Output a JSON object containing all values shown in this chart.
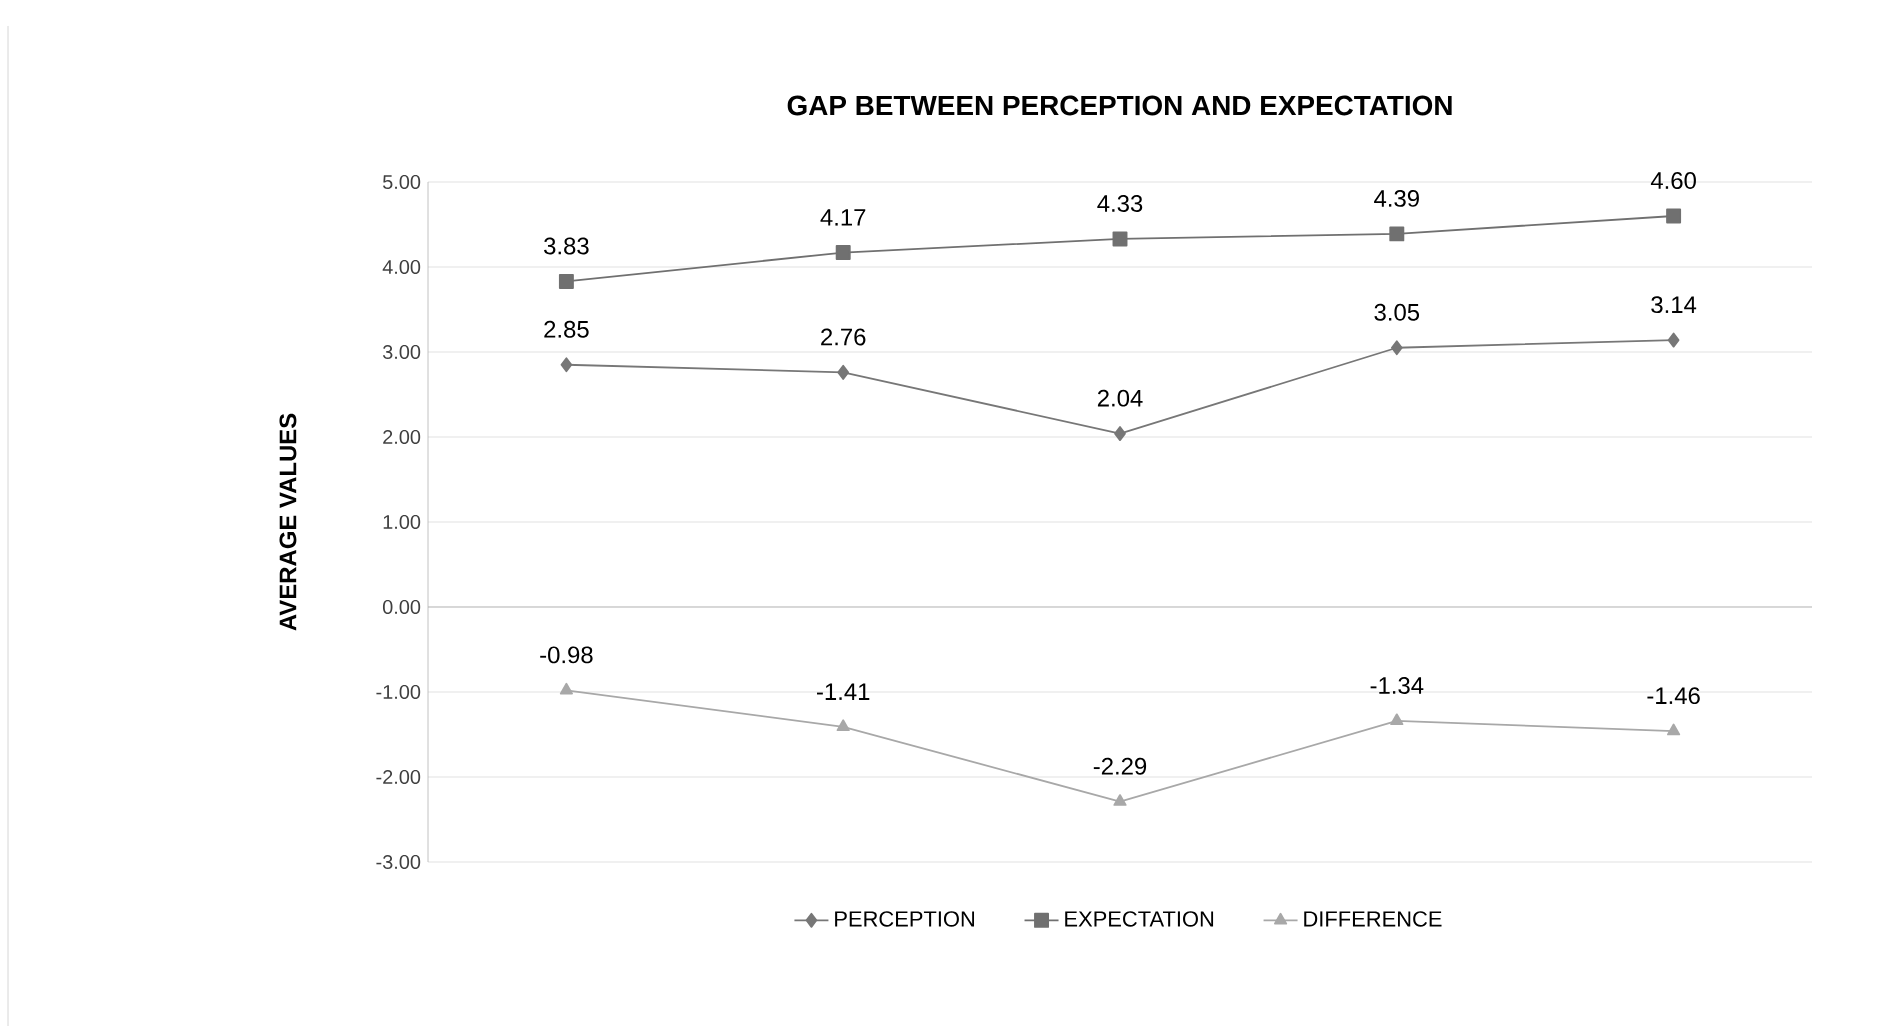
{
  "chart_data": {
    "type": "line",
    "title": "GAP BETWEEN PERCEPTION AND EXPECTATION",
    "ylabel": "AVERAGE VALUES",
    "categories": [
      null,
      null,
      null,
      null,
      null
    ],
    "series": [
      {
        "name": "PERCEPTION",
        "color": "#777777",
        "marker": "diamond",
        "values": [
          2.85,
          2.76,
          2.04,
          3.05,
          3.14
        ],
        "value_labels": [
          "2.85",
          "2.76",
          "2.04",
          "3.05",
          "3.14"
        ]
      },
      {
        "name": "EXPECTATION",
        "color": "#707070",
        "marker": "square",
        "values": [
          3.83,
          4.17,
          4.33,
          4.39,
          4.6
        ],
        "value_labels": [
          "3.83",
          "4.17",
          "4.33",
          "4.39",
          "4.60"
        ]
      },
      {
        "name": "DIFFERENCE",
        "color": "#a8a8a8",
        "marker": "triangle",
        "values": [
          -0.98,
          -1.41,
          -2.29,
          -1.34,
          -1.46
        ],
        "value_labels": [
          "-0.98",
          "-1.41",
          "-2.29",
          "-1.34",
          "-1.46"
        ]
      }
    ],
    "ylim": [
      -3,
      5
    ],
    "yticks": [
      {
        "value": -3,
        "label": "-3.00"
      },
      {
        "value": -2,
        "label": "-2.00"
      },
      {
        "value": -1,
        "label": "-1.00"
      },
      {
        "value": 0,
        "label": "0.00"
      },
      {
        "value": 1,
        "label": "1.00"
      },
      {
        "value": 2,
        "label": "2.00"
      },
      {
        "value": 3,
        "label": "3.00"
      },
      {
        "value": 4,
        "label": "4.00"
      },
      {
        "value": 5,
        "label": "5.00"
      }
    ],
    "grid": "y",
    "legend": "bottom"
  }
}
